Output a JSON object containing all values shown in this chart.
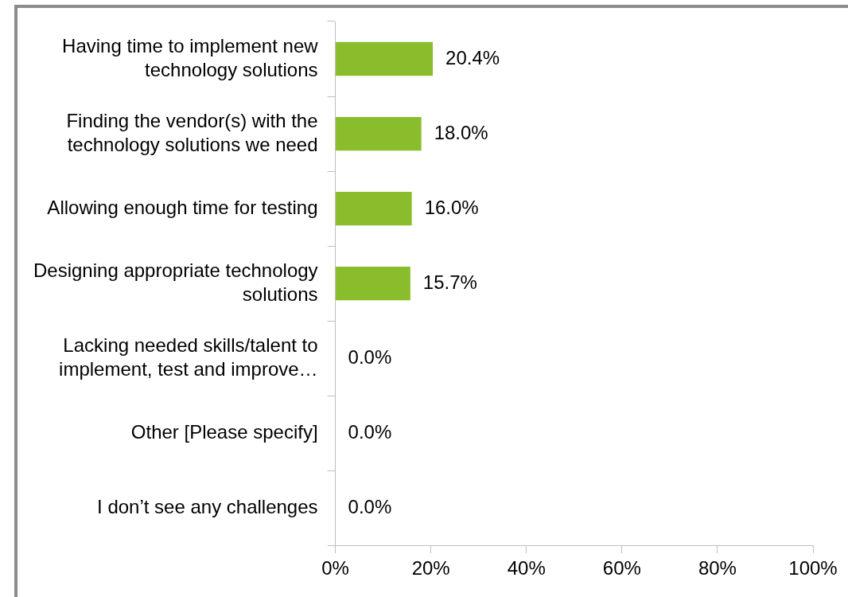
{
  "chart_data": {
    "type": "bar",
    "orientation": "horizontal",
    "categories": [
      "Having time to implement new technology solutions",
      "Finding the vendor(s) with the technology solutions we need",
      "Allowing enough time for testing",
      "Designing appropriate technology solutions",
      "Lacking needed skills/talent to implement, test and improve…",
      "Other [Please specify]",
      "I don’t see any challenges"
    ],
    "values": [
      20.4,
      18.0,
      16.0,
      15.7,
      0.0,
      0.0,
      0.0
    ],
    "value_labels": [
      "20.4%",
      "18.0%",
      "16.0%",
      "15.7%",
      "0.0%",
      "0.0%",
      "0.0%"
    ],
    "color": "#8abd2b",
    "xlim": [
      0,
      100
    ],
    "xticks": [
      {
        "value": 0,
        "label": "0%"
      },
      {
        "value": 20,
        "label": "20%"
      },
      {
        "value": 40,
        "label": "40%"
      },
      {
        "value": 60,
        "label": "60%"
      },
      {
        "value": 80,
        "label": "80%"
      },
      {
        "value": 100,
        "label": "100%"
      }
    ],
    "grid": false,
    "legend": false
  }
}
